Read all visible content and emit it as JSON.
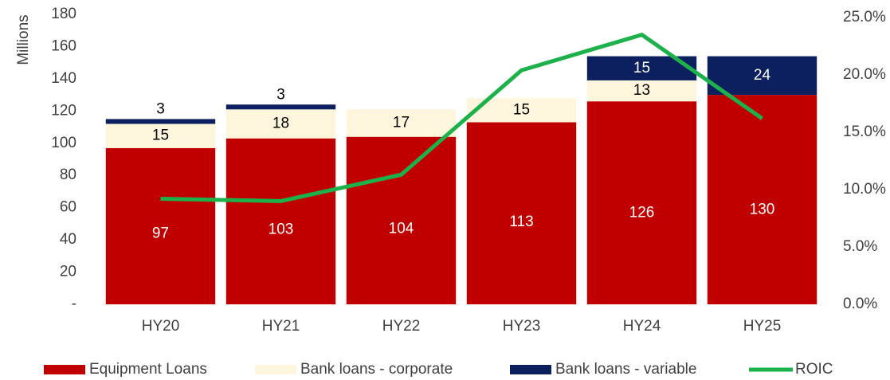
{
  "chart_data": {
    "type": "bar_line",
    "y_axis_label": "Millions",
    "categories": [
      "HY20",
      "HY21",
      "HY22",
      "HY23",
      "HY24",
      "HY25"
    ],
    "series": [
      {
        "name": "Equipment Loans",
        "color": "#c00000",
        "values": [
          97,
          103,
          104,
          113,
          126,
          130
        ]
      },
      {
        "name": "Bank loans - corporate",
        "color": "#fef6dc",
        "values": [
          15,
          18,
          17,
          15,
          13,
          null
        ]
      },
      {
        "name": "Bank loans - variable",
        "color": "#0c1f5e",
        "values": [
          3,
          3,
          null,
          null,
          15,
          24
        ]
      },
      {
        "name": "ROIC",
        "color": "#1db14b",
        "axis": "y2",
        "type": "line",
        "values": [
          9.2,
          9.0,
          11.3,
          20.4,
          23.5,
          16.2
        ]
      }
    ],
    "ylim": [
      0,
      180
    ],
    "yticks": [
      {
        "value": 0,
        "label": "-"
      },
      20,
      40,
      60,
      80,
      100,
      120,
      140,
      160,
      180
    ],
    "y2lim": [
      0,
      25
    ],
    "y2ticks": [
      {
        "value": 0,
        "label": "0.0%"
      },
      {
        "value": 5,
        "label": "5.0%"
      },
      {
        "value": 10,
        "label": "10.0%"
      },
      {
        "value": 15,
        "label": "15.0%"
      },
      {
        "value": 20,
        "label": "20.0%"
      },
      {
        "value": 25,
        "label": "25.0%"
      }
    ],
    "legend": "bottom"
  }
}
